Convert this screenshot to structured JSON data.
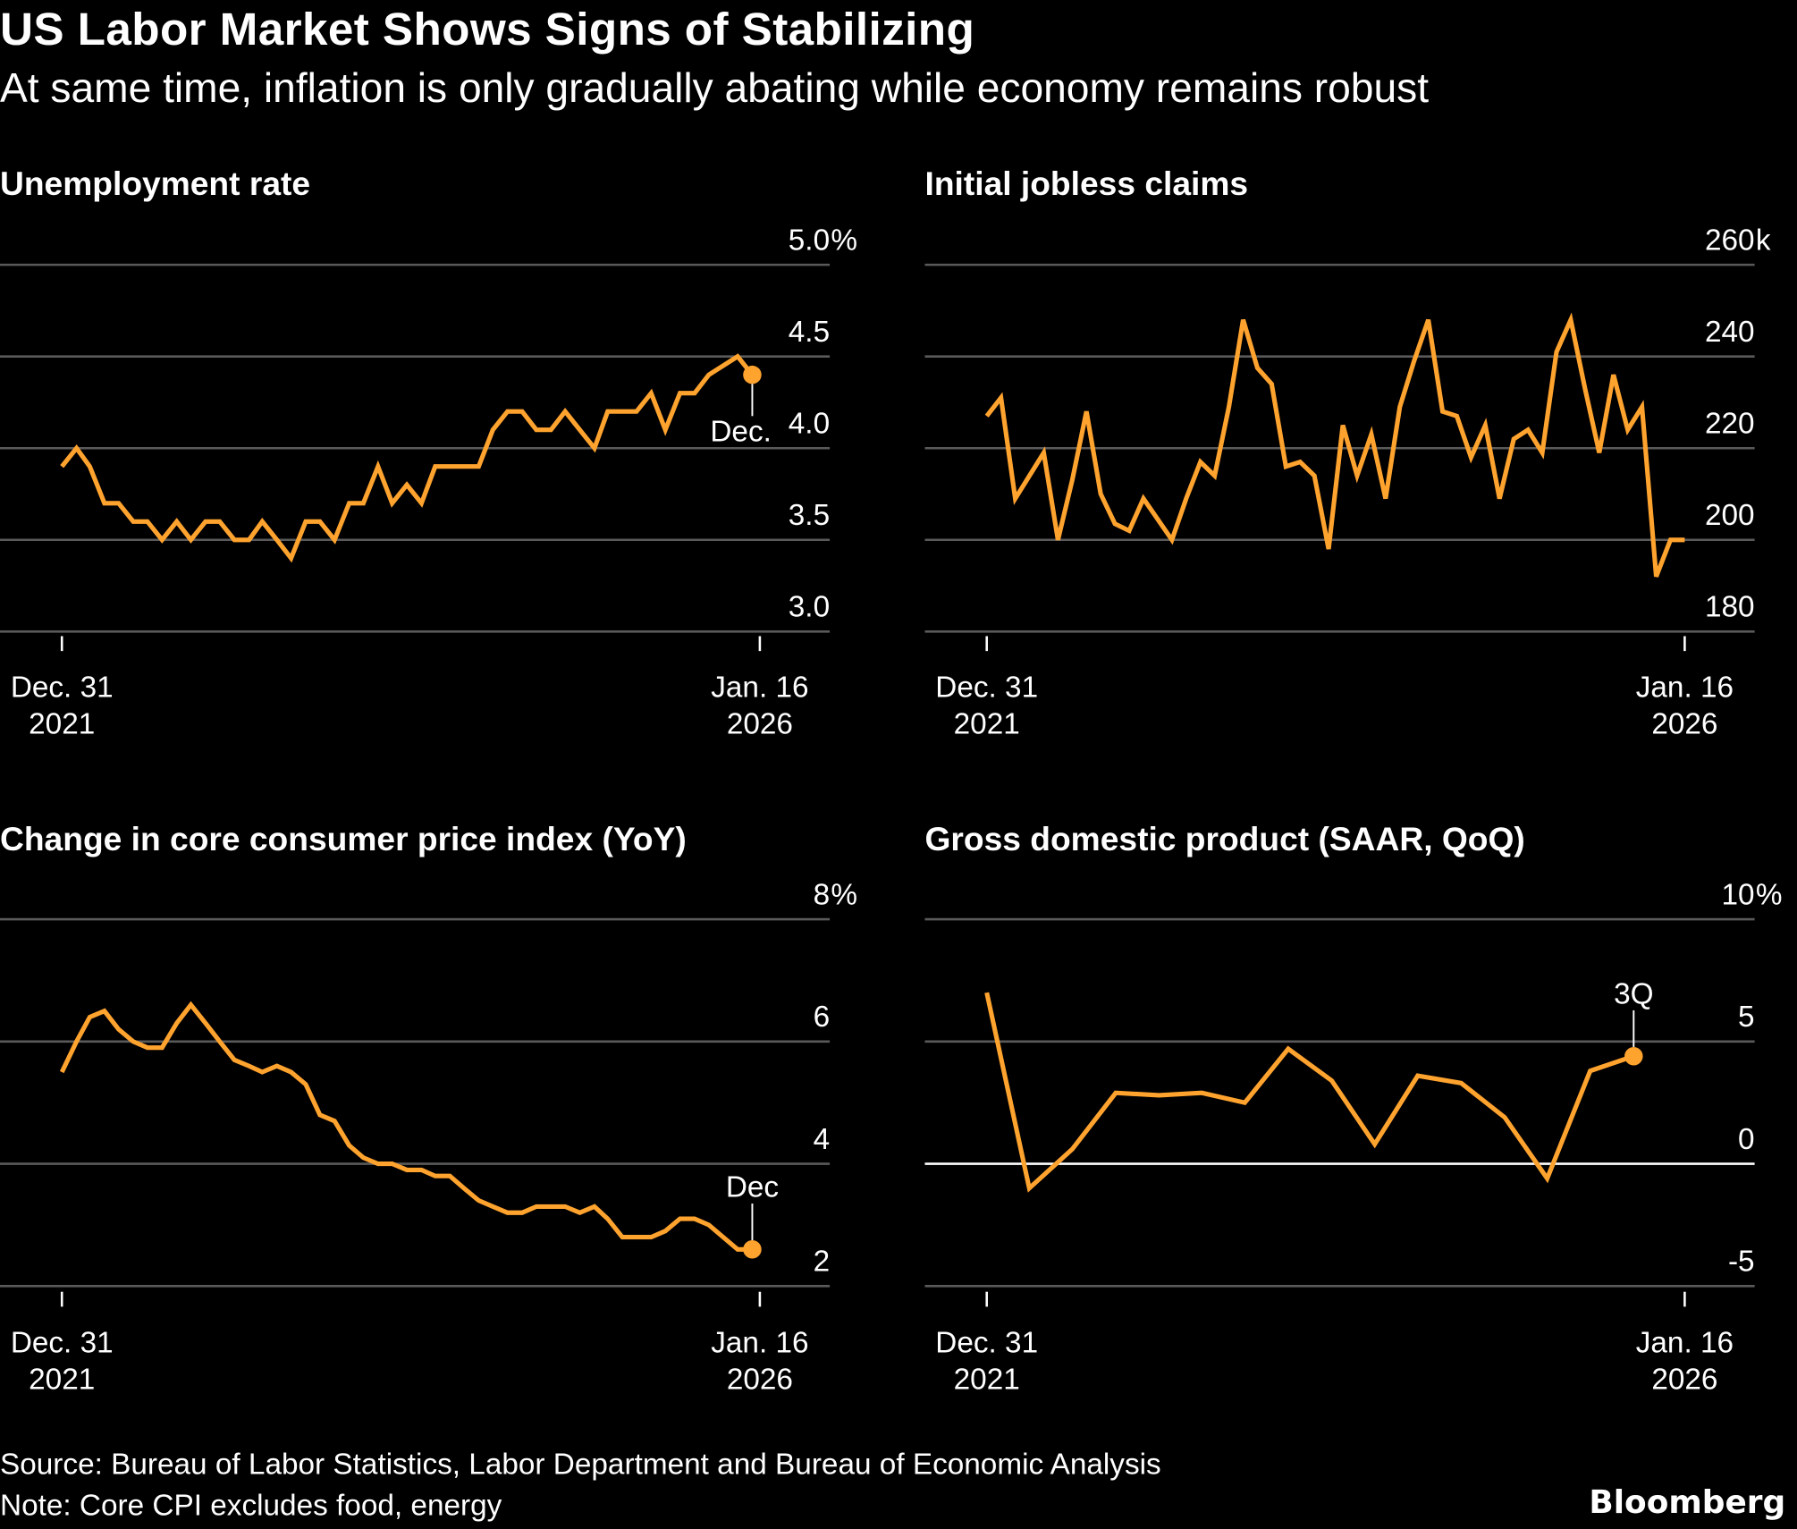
{
  "header": {
    "title": "US Labor Market Shows Signs of Stabilizing",
    "subtitle": "At same time, inflation is only gradually abating while economy remains robust"
  },
  "footer": {
    "source": "Source: Bureau of Labor Statistics, Labor Department and Bureau of Economic Analysis",
    "note": "Note: Core CPI excludes food, energy",
    "logo": "Bloomberg"
  },
  "colors": {
    "background": "#000000",
    "line": "#FFA32F",
    "grid": "#5a5a5a",
    "zero_line": "#ffffff",
    "text": "#ffffff"
  },
  "chart_data": [
    {
      "id": "unemployment",
      "type": "line",
      "title": "Unemployment rate",
      "frequency": "monthly",
      "ylim": [
        3.0,
        5.0
      ],
      "yticks": [
        3.0,
        3.5,
        4.0,
        4.5,
        5.0
      ],
      "ytick_labels": [
        "3.0",
        "3.5",
        "4.0",
        "4.5",
        "5.0"
      ],
      "y_unit": "%",
      "xlim": [
        "2021-12-31",
        "2026-01-16"
      ],
      "xtick_labels": [
        [
          "Dec. 31",
          "2021"
        ],
        [
          "Jan. 16",
          "2026"
        ]
      ],
      "grid": true,
      "x": [
        "2021-12",
        "2022-01",
        "2022-02",
        "2022-03",
        "2022-04",
        "2022-05",
        "2022-06",
        "2022-07",
        "2022-08",
        "2022-09",
        "2022-10",
        "2022-11",
        "2022-12",
        "2023-01",
        "2023-02",
        "2023-03",
        "2023-04",
        "2023-05",
        "2023-06",
        "2023-07",
        "2023-08",
        "2023-09",
        "2023-10",
        "2023-11",
        "2023-12",
        "2024-01",
        "2024-02",
        "2024-03",
        "2024-04",
        "2024-05",
        "2024-06",
        "2024-07",
        "2024-08",
        "2024-09",
        "2024-10",
        "2024-11",
        "2024-12",
        "2025-01",
        "2025-02",
        "2025-03",
        "2025-04",
        "2025-05",
        "2025-06",
        "2025-07",
        "2025-08",
        "2025-09",
        "2025-11",
        "2025-12"
      ],
      "values": [
        3.9,
        4.0,
        3.9,
        3.7,
        3.7,
        3.6,
        3.6,
        3.5,
        3.6,
        3.5,
        3.6,
        3.6,
        3.5,
        3.5,
        3.6,
        3.5,
        3.4,
        3.6,
        3.6,
        3.5,
        3.7,
        3.7,
        3.9,
        3.7,
        3.8,
        3.7,
        3.9,
        3.9,
        3.9,
        3.9,
        4.1,
        4.2,
        4.2,
        4.1,
        4.1,
        4.2,
        4.1,
        4.0,
        4.2,
        4.2,
        4.2,
        4.3,
        4.1,
        4.3,
        4.3,
        4.4,
        4.5,
        4.4
      ],
      "annotation": {
        "label": "Dec.",
        "position": "below"
      }
    },
    {
      "id": "claims",
      "type": "line",
      "title": "Initial jobless claims",
      "ylim": [
        180,
        260
      ],
      "yticks": [
        180,
        200,
        220,
        240,
        260
      ],
      "ytick_labels": [
        "180",
        "200",
        "220",
        "240",
        "260"
      ],
      "y_unit": "k",
      "xlim": [
        "2021-12-31",
        "2026-01-16"
      ],
      "xtick_labels": [
        [
          "Dec. 31",
          "2021"
        ],
        [
          "Jan. 16",
          "2026"
        ]
      ],
      "grid": true,
      "values": [
        227,
        231,
        209,
        214,
        219,
        200,
        213,
        228,
        210,
        203.5,
        202,
        209,
        204.5,
        200,
        209,
        217,
        214,
        229,
        248,
        237.5,
        234,
        216,
        217,
        214,
        198,
        225,
        214,
        223,
        209,
        229,
        239,
        248,
        228,
        227,
        218,
        225,
        209,
        222,
        224,
        219,
        241,
        248,
        233,
        219,
        236,
        224,
        229,
        192,
        200,
        200
      ]
    },
    {
      "id": "core_cpi",
      "type": "line",
      "title": "Change in core consumer price index (YoY)",
      "frequency": "monthly",
      "ylim": [
        2,
        8
      ],
      "yticks": [
        2,
        4,
        6,
        8
      ],
      "ytick_labels": [
        "2",
        "4",
        "6",
        "8"
      ],
      "y_unit": "%",
      "xlim": [
        "2021-12-31",
        "2026-01-16"
      ],
      "xtick_labels": [
        [
          "Dec. 31",
          "2021"
        ],
        [
          "Jan. 16",
          "2026"
        ]
      ],
      "grid": true,
      "x": [
        "2021-12",
        "2022-01",
        "2022-02",
        "2022-03",
        "2022-04",
        "2022-05",
        "2022-06",
        "2022-07",
        "2022-08",
        "2022-09",
        "2022-10",
        "2022-11",
        "2022-12",
        "2023-01",
        "2023-02",
        "2023-03",
        "2023-04",
        "2023-05",
        "2023-06",
        "2023-07",
        "2023-08",
        "2023-09",
        "2023-10",
        "2023-11",
        "2023-12",
        "2024-01",
        "2024-02",
        "2024-03",
        "2024-04",
        "2024-05",
        "2024-06",
        "2024-07",
        "2024-08",
        "2024-09",
        "2024-10",
        "2024-11",
        "2024-12",
        "2025-01",
        "2025-02",
        "2025-03",
        "2025-04",
        "2025-05",
        "2025-06",
        "2025-07",
        "2025-08",
        "2025-09",
        "2025-11",
        "2025-12"
      ],
      "values": [
        5.5,
        6.0,
        6.4,
        6.5,
        6.2,
        6.0,
        5.9,
        5.9,
        6.3,
        6.6,
        6.3,
        6.0,
        5.7,
        5.6,
        5.5,
        5.6,
        5.5,
        5.3,
        4.8,
        4.7,
        4.3,
        4.1,
        4.0,
        4.0,
        3.9,
        3.9,
        3.8,
        3.8,
        3.6,
        3.4,
        3.3,
        3.2,
        3.2,
        3.3,
        3.3,
        3.3,
        3.2,
        3.3,
        3.1,
        2.8,
        2.8,
        2.8,
        2.9,
        3.1,
        3.1,
        3.0,
        2.6,
        2.6
      ],
      "annotation": {
        "label": "Dec",
        "position": "above"
      }
    },
    {
      "id": "gdp",
      "type": "line",
      "title": "Gross domestic product (SAAR, QoQ)",
      "frequency": "quarterly",
      "ylim": [
        -5,
        10
      ],
      "yticks": [
        -5,
        0,
        5,
        10
      ],
      "ytick_labels": [
        "-5",
        "0",
        "5",
        "10"
      ],
      "y_unit": "%",
      "zero_line": true,
      "xlim": [
        "2021-12-31",
        "2026-01-16"
      ],
      "xtick_labels": [
        [
          "Dec. 31",
          "2021"
        ],
        [
          "Jan. 16",
          "2026"
        ]
      ],
      "grid": true,
      "x": [
        "2021-12",
        "2022-03",
        "2022-06",
        "2022-09",
        "2022-12",
        "2023-03",
        "2023-06",
        "2023-09",
        "2023-12",
        "2024-03",
        "2024-06",
        "2024-09",
        "2024-12",
        "2025-03",
        "2025-06",
        "2025-09"
      ],
      "values": [
        7.0,
        -1.0,
        0.6,
        2.9,
        2.8,
        2.9,
        2.5,
        4.7,
        3.4,
        0.8,
        3.6,
        3.3,
        1.9,
        -0.6,
        3.8,
        4.4
      ],
      "annotation": {
        "label": "3Q",
        "position": "above"
      }
    }
  ]
}
